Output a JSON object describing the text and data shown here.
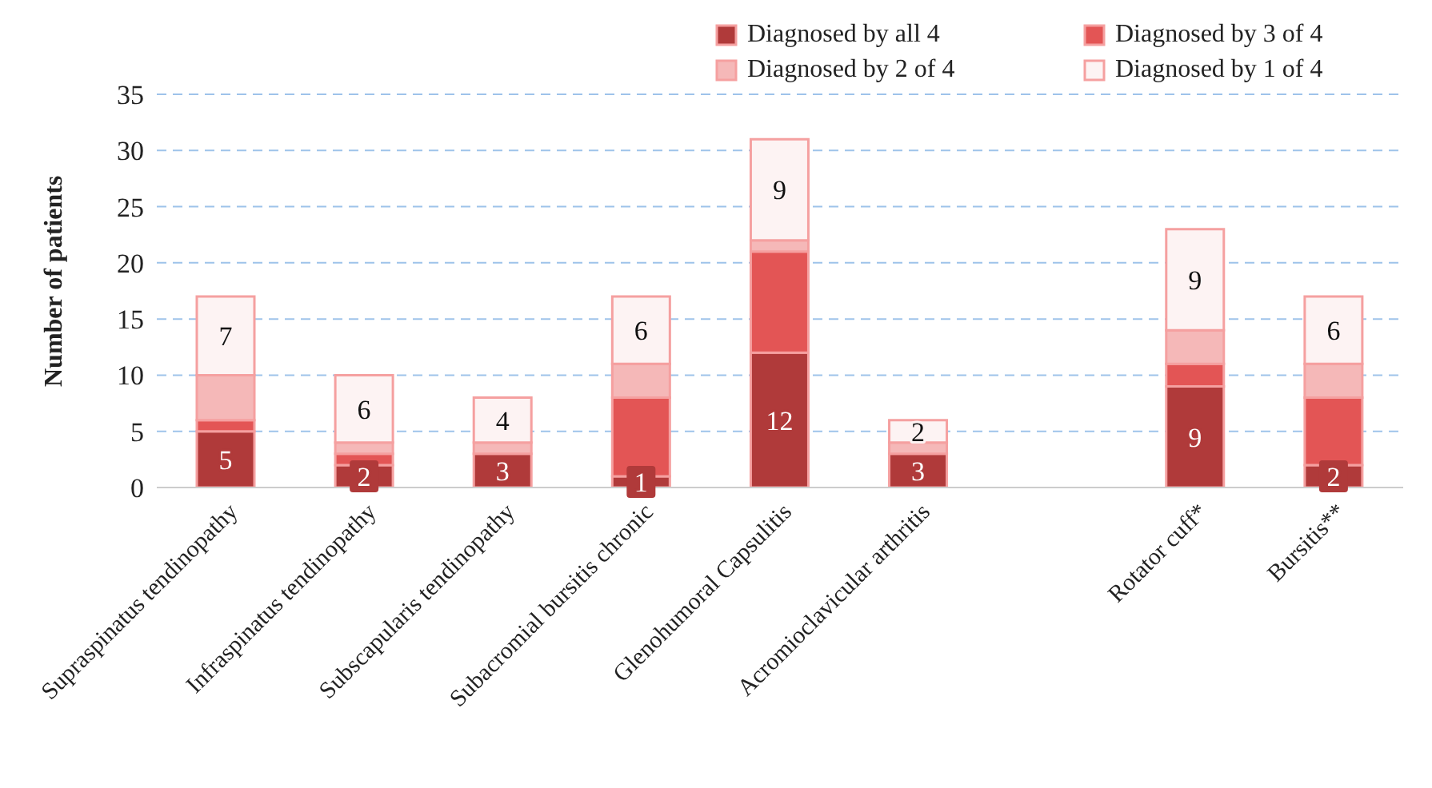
{
  "chart_data": {
    "type": "bar",
    "stacked": true,
    "ylabel": "Number of patients",
    "categories": [
      "Supraspinatus tendinopathy",
      "Infraspinatus tendinopathy",
      "Subscapularis tendinopathy",
      "Subacromial bursitis chronic",
      "Glenohumoral Capsulitis",
      "Acromioclavicular arthritis",
      null,
      "Rotator cuff*",
      "Bursitis**"
    ],
    "series": [
      {
        "name": "Diagnosed by all 4",
        "color": "#b03a3a",
        "values": [
          5,
          2,
          3,
          1,
          12,
          3,
          null,
          9,
          2
        ],
        "value_labels": [
          "5",
          "2",
          "3",
          "1",
          "12",
          "3",
          null,
          "9",
          "2"
        ]
      },
      {
        "name": "Diagnosed by 3 of 4",
        "color": "#e35555",
        "values": [
          1,
          1,
          0,
          7,
          9,
          0,
          null,
          2,
          6
        ]
      },
      {
        "name": "Diagnosed by 2 of 4",
        "color": "#f5b8b8",
        "values": [
          4,
          1,
          1,
          3,
          1,
          1,
          null,
          3,
          3
        ]
      },
      {
        "name": "Diagnosed by 1 of 4",
        "color": "#fdf3f3",
        "values": [
          7,
          6,
          4,
          6,
          9,
          2,
          null,
          9,
          6
        ],
        "value_labels": [
          "7",
          "6",
          "4",
          "6",
          "9",
          "2",
          null,
          "9",
          "6"
        ]
      }
    ],
    "ylim": [
      0,
      35
    ],
    "yticks": [
      0,
      5,
      10,
      15,
      20,
      25,
      30,
      35
    ],
    "grid": "y",
    "legend": "top right"
  }
}
